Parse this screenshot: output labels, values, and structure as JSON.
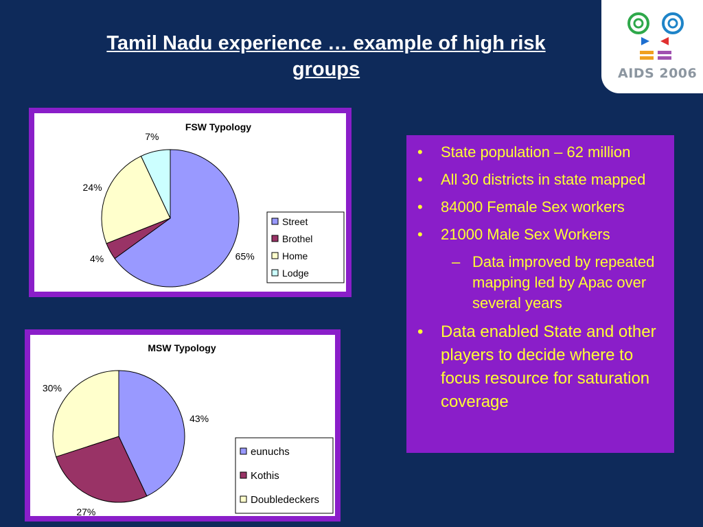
{
  "slide": {
    "title": "Tamil Nadu experience … example of high risk groups",
    "logo_text": "AIDS 2006"
  },
  "bullets": [
    {
      "text": "State population – 62 million",
      "level": 1,
      "marker": "•"
    },
    {
      "text": "All 30 districts in state mapped",
      "level": 1,
      "marker": "•"
    },
    {
      "text": "84000 Female Sex workers",
      "level": 1,
      "marker": "•"
    },
    {
      "text": "21000 Male Sex Workers",
      "level": 1,
      "marker": "•"
    },
    {
      "text": "Data improved by repeated mapping led by Apac over several years",
      "level": 2,
      "marker": "–"
    },
    {
      "text": "Data enabled State and other players to decide where to focus resource for saturation coverage",
      "level": 1,
      "marker": "•",
      "big": true
    }
  ],
  "colors": {
    "background": "#0e2a5a",
    "frame": "#8a1ec9",
    "bullet_text": "#ffff33",
    "title_text": "#ffffff"
  },
  "chart_data": [
    {
      "type": "pie",
      "title": "FSW Typology",
      "legend_position": "right",
      "slices": [
        {
          "label": "Street",
          "value": 65,
          "display": "65%",
          "color": "#9999ff"
        },
        {
          "label": "Brothel",
          "value": 4,
          "display": "4%",
          "color": "#993366"
        },
        {
          "label": "Home",
          "value": 24,
          "display": "24%",
          "color": "#ffffcc"
        },
        {
          "label": "Lodge",
          "value": 7,
          "display": "7%",
          "color": "#ccffff"
        }
      ]
    },
    {
      "type": "pie",
      "title": "MSW Typology",
      "legend_position": "right",
      "slices": [
        {
          "label": "eunuchs",
          "value": 43,
          "display": "43%",
          "color": "#9999ff"
        },
        {
          "label": "Kothis",
          "value": 27,
          "display": "27%",
          "color": "#993366"
        },
        {
          "label": "Doubledeckers",
          "value": 30,
          "display": "30%",
          "color": "#ffffcc"
        }
      ]
    }
  ]
}
